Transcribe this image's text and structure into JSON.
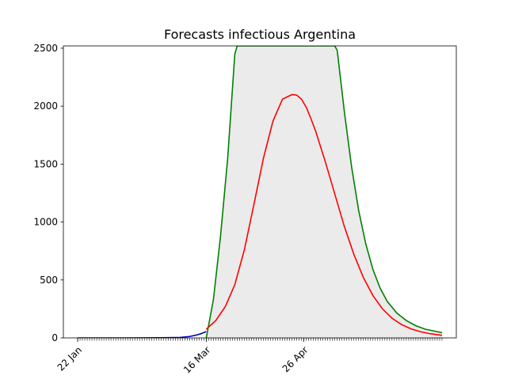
{
  "chart_data": {
    "type": "line",
    "title": "Forecasts infectious Argentina",
    "xlabel": "",
    "ylabel": "",
    "x_start": "2020-01-22",
    "x_end": "2020-06-23",
    "xlim": [
      "2020-01-16",
      "2020-06-29"
    ],
    "ylim": [
      0,
      2520
    ],
    "x_tick_labels": [
      {
        "date": "2020-01-22",
        "label": "22 Jan"
      },
      {
        "date": "2020-03-16",
        "label": "16 Mar"
      },
      {
        "date": "2020-04-26",
        "label": "26 Apr"
      }
    ],
    "y_ticks": [
      0,
      500,
      1000,
      1500,
      2000,
      2500
    ],
    "grid": false,
    "legend": "none",
    "colors": {
      "observed": "#0000bb",
      "forecast": "#ff0000",
      "upper_bound": "#008000",
      "band": "#ebebeb"
    },
    "observed_series": {
      "x": [
        "2020-01-22",
        "2020-02-10",
        "2020-02-26",
        "2020-03-05",
        "2020-03-09",
        "2020-03-12",
        "2020-03-14",
        "2020-03-16"
      ],
      "y": [
        0,
        0,
        1,
        4,
        12,
        25,
        38,
        55
      ]
    },
    "forecast_series": {
      "x": [
        "2020-03-16",
        "2020-03-20",
        "2020-03-24",
        "2020-03-28",
        "2020-04-01",
        "2020-04-05",
        "2020-04-09",
        "2020-04-13",
        "2020-04-17",
        "2020-04-21",
        "2020-04-23",
        "2020-04-25",
        "2020-04-27",
        "2020-04-29",
        "2020-05-01",
        "2020-05-05",
        "2020-05-09",
        "2020-05-13",
        "2020-05-17",
        "2020-05-21",
        "2020-05-25",
        "2020-05-29",
        "2020-06-02",
        "2020-06-06",
        "2020-06-10",
        "2020-06-14",
        "2020-06-18",
        "2020-06-23"
      ],
      "y": [
        75,
        150,
        270,
        460,
        760,
        1150,
        1550,
        1870,
        2060,
        2100,
        2095,
        2060,
        1990,
        1890,
        1780,
        1520,
        1240,
        960,
        720,
        520,
        365,
        250,
        170,
        115,
        78,
        53,
        36,
        22
      ]
    },
    "upper_series": {
      "x": [
        "2020-03-16",
        "2020-03-19",
        "2020-03-22",
        "2020-03-25",
        "2020-03-27",
        "2020-03-28",
        "2020-03-29",
        "2020-05-09",
        "2020-05-10",
        "2020-05-13",
        "2020-05-16",
        "2020-05-19",
        "2020-05-22",
        "2020-05-25",
        "2020-05-28",
        "2020-05-31",
        "2020-06-04",
        "2020-06-08",
        "2020-06-12",
        "2020-06-16",
        "2020-06-20",
        "2020-06-23"
      ],
      "y": [
        0,
        330,
        880,
        1550,
        2150,
        2450,
        2520,
        2520,
        2480,
        1950,
        1480,
        1100,
        810,
        590,
        430,
        315,
        215,
        150,
        105,
        75,
        58,
        45
      ]
    },
    "lower_series": {
      "x": [
        "2020-03-16",
        "2020-06-23"
      ],
      "y": [
        0,
        0
      ]
    }
  }
}
